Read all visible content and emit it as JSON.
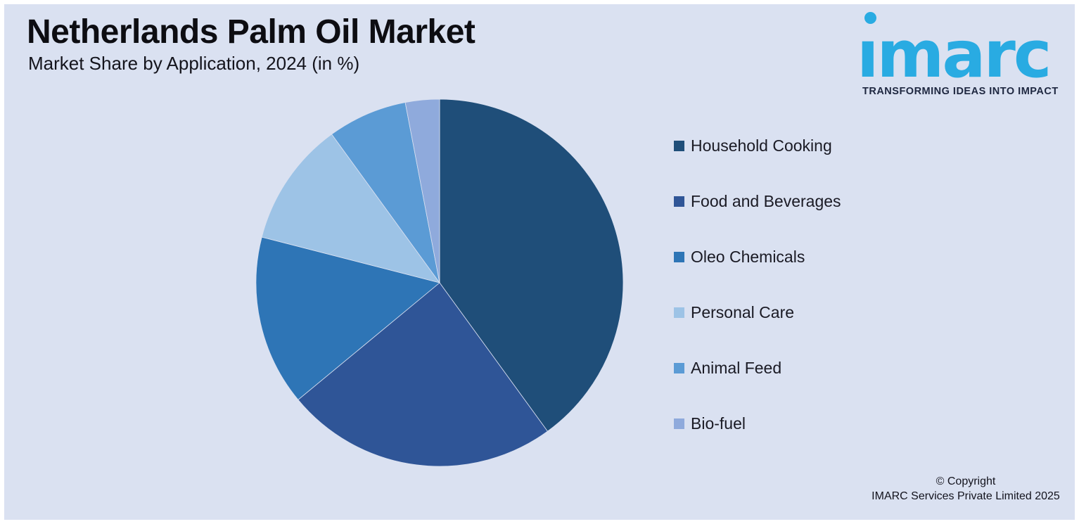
{
  "page": {
    "background": "#DAE1F1",
    "frame_color": "#FFFFFF"
  },
  "header": {
    "title": "Netherlands Palm Oil Market",
    "subtitle": "Market Share by Application, 2024 (in %)"
  },
  "logo": {
    "brand": "imarc",
    "brand_display": "ımarc",
    "tagline": "TRANSFORMING IDEAS INTO IMPACT",
    "brand_color": "#29ABE2",
    "tagline_color": "#1E2740"
  },
  "chart_data": {
    "type": "pie",
    "title": "Netherlands Palm Oil Market",
    "subtitle": "Market Share by Application, 2024 (in %)",
    "unit": "%",
    "categories": [
      "Household Cooking",
      "Food and Beverages",
      "Oleo Chemicals",
      "Personal Care",
      "Animal Feed",
      "Bio-fuel"
    ],
    "values": [
      40,
      24,
      15,
      11,
      7,
      3
    ],
    "colors": [
      "#1F4E79",
      "#2F5597",
      "#2E75B6",
      "#9DC3E6",
      "#5B9BD5",
      "#8FAADC"
    ],
    "start_angle_deg": 0,
    "direction": "clockwise",
    "legend_position": "right",
    "data_labels": false
  },
  "legend": {
    "items": [
      {
        "label": "Household Cooking",
        "color": "#1F4E79"
      },
      {
        "label": "Food and Beverages",
        "color": "#2F5597"
      },
      {
        "label": "Oleo Chemicals",
        "color": "#2E75B6"
      },
      {
        "label": "Personal Care",
        "color": "#9DC3E6"
      },
      {
        "label": "Animal Feed",
        "color": "#5B9BD5"
      },
      {
        "label": "Bio-fuel",
        "color": "#8FAADC"
      }
    ]
  },
  "footer": {
    "line1": "© Copyright",
    "line2": "IMARC Services Private Limited 2025"
  }
}
